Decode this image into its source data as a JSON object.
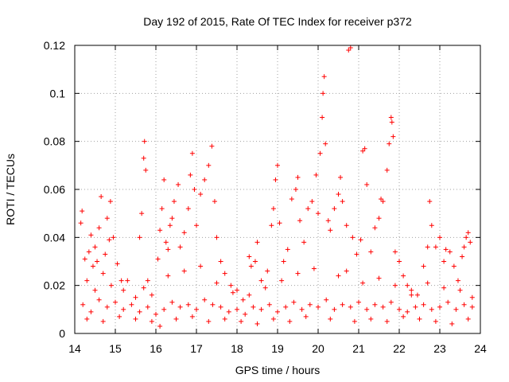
{
  "chart_data": {
    "type": "scatter",
    "title": "Day 192 of 2015, Rate Of TEC Index for receiver p372",
    "xlabel": "GPS time / hours",
    "ylabel": "ROTI / TECUs",
    "xlim": [
      14,
      24
    ],
    "ylim": [
      0,
      0.12
    ],
    "x_ticks": [
      "14",
      "15",
      "16",
      "17",
      "18",
      "19",
      "20",
      "21",
      "22",
      "23",
      "24"
    ],
    "y_ticks": [
      "0",
      "0.02",
      "0.04",
      "0.06",
      "0.08",
      "0.1",
      "0.12"
    ],
    "grid": true,
    "marker": "plus",
    "color": "#ff0000",
    "series": [
      {
        "name": "ROTI",
        "points": [
          [
            14.15,
            0.046
          ],
          [
            14.18,
            0.051
          ],
          [
            14.25,
            0.031
          ],
          [
            14.3,
            0.022
          ],
          [
            14.35,
            0.034
          ],
          [
            14.4,
            0.041
          ],
          [
            14.45,
            0.028
          ],
          [
            14.5,
            0.036
          ],
          [
            14.55,
            0.03
          ],
          [
            14.6,
            0.044
          ],
          [
            14.65,
            0.057
          ],
          [
            14.7,
            0.025
          ],
          [
            14.75,
            0.033
          ],
          [
            14.8,
            0.048
          ],
          [
            14.85,
            0.039
          ],
          [
            14.88,
            0.055
          ],
          [
            14.95,
            0.04
          ],
          [
            15.05,
            0.029
          ],
          [
            15.15,
            0.022
          ],
          [
            15.2,
            0.018
          ],
          [
            15.5,
            0.015
          ],
          [
            15.6,
            0.04
          ],
          [
            15.65,
            0.05
          ],
          [
            15.7,
            0.073
          ],
          [
            15.72,
            0.08
          ],
          [
            15.75,
            0.068
          ],
          [
            15.8,
            0.022
          ],
          [
            15.9,
            0.016
          ],
          [
            16.05,
            0.031
          ],
          [
            16.1,
            0.043
          ],
          [
            16.15,
            0.052
          ],
          [
            16.2,
            0.064
          ],
          [
            16.25,
            0.038
          ],
          [
            16.3,
            0.035
          ],
          [
            16.35,
            0.045
          ],
          [
            16.4,
            0.048
          ],
          [
            16.45,
            0.055
          ],
          [
            16.55,
            0.062
          ],
          [
            16.6,
            0.036
          ],
          [
            16.7,
            0.042
          ],
          [
            16.8,
            0.052
          ],
          [
            16.85,
            0.066
          ],
          [
            16.9,
            0.075
          ],
          [
            16.95,
            0.06
          ],
          [
            17.0,
            0.045
          ],
          [
            17.1,
            0.058
          ],
          [
            17.2,
            0.064
          ],
          [
            17.3,
            0.07
          ],
          [
            17.38,
            0.078
          ],
          [
            17.45,
            0.055
          ],
          [
            17.5,
            0.04
          ],
          [
            17.6,
            0.03
          ],
          [
            17.7,
            0.025
          ],
          [
            17.85,
            0.02
          ],
          [
            18.0,
            0.018
          ],
          [
            18.15,
            0.014
          ],
          [
            18.3,
            0.032
          ],
          [
            18.35,
            0.028
          ],
          [
            18.45,
            0.03
          ],
          [
            18.5,
            0.038
          ],
          [
            18.6,
            0.022
          ],
          [
            18.75,
            0.026
          ],
          [
            18.85,
            0.045
          ],
          [
            18.9,
            0.052
          ],
          [
            18.95,
            0.064
          ],
          [
            19.0,
            0.07
          ],
          [
            19.05,
            0.046
          ],
          [
            19.15,
            0.03
          ],
          [
            19.25,
            0.035
          ],
          [
            19.35,
            0.056
          ],
          [
            19.45,
            0.06
          ],
          [
            19.5,
            0.065
          ],
          [
            19.55,
            0.047
          ],
          [
            19.65,
            0.038
          ],
          [
            19.75,
            0.052
          ],
          [
            19.85,
            0.055
          ],
          [
            19.95,
            0.066
          ],
          [
            20.0,
            0.05
          ],
          [
            20.05,
            0.075
          ],
          [
            20.1,
            0.09
          ],
          [
            20.12,
            0.1
          ],
          [
            20.15,
            0.107
          ],
          [
            20.18,
            0.079
          ],
          [
            20.25,
            0.047
          ],
          [
            20.3,
            0.043
          ],
          [
            20.4,
            0.052
          ],
          [
            20.5,
            0.058
          ],
          [
            20.55,
            0.065
          ],
          [
            20.6,
            0.055
          ],
          [
            20.7,
            0.045
          ],
          [
            20.75,
            0.118
          ],
          [
            20.8,
            0.119
          ],
          [
            20.85,
            0.04
          ],
          [
            20.95,
            0.033
          ],
          [
            21.05,
            0.039
          ],
          [
            21.1,
            0.076
          ],
          [
            21.15,
            0.077
          ],
          [
            21.2,
            0.062
          ],
          [
            21.3,
            0.034
          ],
          [
            21.4,
            0.044
          ],
          [
            21.5,
            0.048
          ],
          [
            21.55,
            0.056
          ],
          [
            21.6,
            0.055
          ],
          [
            21.7,
            0.068
          ],
          [
            21.75,
            0.079
          ],
          [
            21.8,
            0.09
          ],
          [
            21.82,
            0.088
          ],
          [
            21.85,
            0.082
          ],
          [
            21.9,
            0.034
          ],
          [
            22.0,
            0.03
          ],
          [
            22.1,
            0.024
          ],
          [
            22.2,
            0.02
          ],
          [
            22.3,
            0.018
          ],
          [
            22.45,
            0.016
          ],
          [
            22.6,
            0.028
          ],
          [
            22.7,
            0.036
          ],
          [
            22.75,
            0.055
          ],
          [
            22.8,
            0.045
          ],
          [
            22.9,
            0.036
          ],
          [
            23.0,
            0.04
          ],
          [
            23.1,
            0.03
          ],
          [
            23.15,
            0.035
          ],
          [
            23.25,
            0.034
          ],
          [
            23.35,
            0.028
          ],
          [
            23.45,
            0.022
          ],
          [
            23.55,
            0.032
          ],
          [
            23.6,
            0.036
          ],
          [
            23.65,
            0.04
          ],
          [
            23.7,
            0.042
          ],
          [
            23.75,
            0.038
          ],
          [
            14.2,
            0.012
          ],
          [
            14.4,
            0.009
          ],
          [
            14.6,
            0.014
          ],
          [
            14.8,
            0.011
          ],
          [
            15.0,
            0.013
          ],
          [
            15.2,
            0.01
          ],
          [
            15.4,
            0.012
          ],
          [
            15.6,
            0.009
          ],
          [
            15.8,
            0.011
          ],
          [
            16.0,
            0.008
          ],
          [
            16.2,
            0.01
          ],
          [
            16.4,
            0.013
          ],
          [
            16.6,
            0.011
          ],
          [
            16.8,
            0.012
          ],
          [
            17.0,
            0.01
          ],
          [
            17.2,
            0.014
          ],
          [
            17.4,
            0.012
          ],
          [
            17.6,
            0.011
          ],
          [
            17.8,
            0.009
          ],
          [
            18.0,
            0.01
          ],
          [
            18.2,
            0.008
          ],
          [
            18.4,
            0.011
          ],
          [
            18.6,
            0.01
          ],
          [
            18.8,
            0.012
          ],
          [
            19.0,
            0.009
          ],
          [
            19.2,
            0.011
          ],
          [
            19.4,
            0.013
          ],
          [
            19.6,
            0.01
          ],
          [
            19.8,
            0.012
          ],
          [
            20.0,
            0.011
          ],
          [
            20.2,
            0.014
          ],
          [
            20.4,
            0.01
          ],
          [
            20.6,
            0.012
          ],
          [
            20.8,
            0.011
          ],
          [
            21.0,
            0.013
          ],
          [
            21.2,
            0.01
          ],
          [
            21.4,
            0.012
          ],
          [
            21.6,
            0.011
          ],
          [
            21.8,
            0.013
          ],
          [
            22.0,
            0.01
          ],
          [
            22.2,
            0.009
          ],
          [
            22.4,
            0.011
          ],
          [
            22.6,
            0.012
          ],
          [
            22.8,
            0.01
          ],
          [
            23.0,
            0.011
          ],
          [
            23.2,
            0.013
          ],
          [
            23.4,
            0.01
          ],
          [
            23.6,
            0.012
          ],
          [
            23.8,
            0.011
          ],
          [
            14.3,
            0.006
          ],
          [
            14.7,
            0.005
          ],
          [
            15.1,
            0.007
          ],
          [
            15.5,
            0.006
          ],
          [
            15.9,
            0.005
          ],
          [
            16.1,
            0.003
          ],
          [
            16.5,
            0.006
          ],
          [
            16.9,
            0.007
          ],
          [
            17.3,
            0.005
          ],
          [
            17.7,
            0.006
          ],
          [
            18.1,
            0.005
          ],
          [
            18.5,
            0.004
          ],
          [
            18.9,
            0.006
          ],
          [
            19.3,
            0.005
          ],
          [
            19.7,
            0.007
          ],
          [
            20.3,
            0.006
          ],
          [
            20.9,
            0.005
          ],
          [
            21.3,
            0.006
          ],
          [
            21.7,
            0.005
          ],
          [
            22.1,
            0.007
          ],
          [
            22.5,
            0.006
          ],
          [
            22.9,
            0.005
          ],
          [
            23.3,
            0.004
          ],
          [
            23.7,
            0.006
          ],
          [
            14.5,
            0.018
          ],
          [
            14.9,
            0.02
          ],
          [
            15.3,
            0.022
          ],
          [
            15.7,
            0.019
          ],
          [
            16.3,
            0.024
          ],
          [
            16.7,
            0.026
          ],
          [
            17.1,
            0.028
          ],
          [
            17.5,
            0.021
          ],
          [
            17.9,
            0.017
          ],
          [
            18.3,
            0.016
          ],
          [
            18.7,
            0.019
          ],
          [
            19.1,
            0.022
          ],
          [
            19.5,
            0.025
          ],
          [
            19.9,
            0.027
          ],
          [
            20.5,
            0.024
          ],
          [
            20.7,
            0.026
          ],
          [
            21.1,
            0.021
          ],
          [
            21.5,
            0.023
          ],
          [
            21.9,
            0.02
          ],
          [
            22.3,
            0.016
          ],
          [
            22.7,
            0.021
          ],
          [
            23.1,
            0.019
          ],
          [
            23.5,
            0.018
          ],
          [
            23.8,
            0.015
          ]
        ]
      }
    ]
  }
}
